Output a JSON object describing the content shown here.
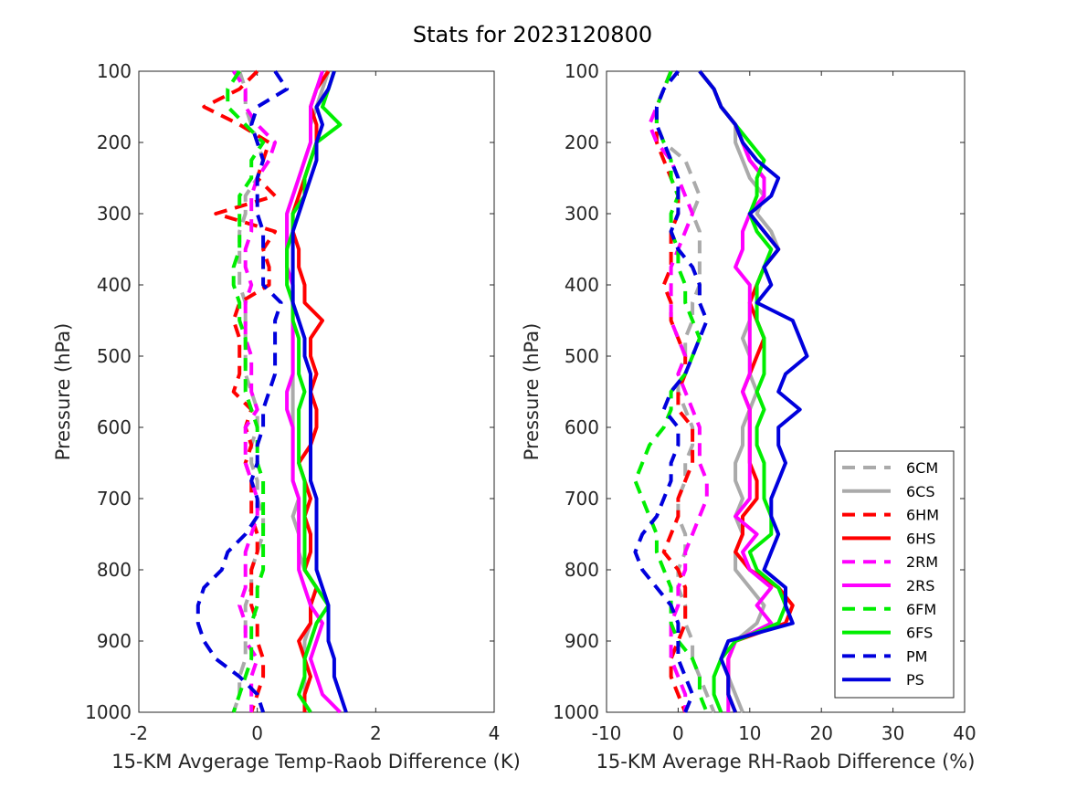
{
  "figure": {
    "title": "Stats for 2023120800"
  },
  "colors": {
    "6C": "#aaaaaa",
    "6H": "#ff0000",
    "2R": "#ff00ff",
    "6F": "#00ee00",
    "P": "#0000dd"
  },
  "chart_data": [
    {
      "type": "line",
      "xlabel": "15-KM Avgerage Temp-Raob Difference (K)",
      "ylabel": "Pressure (hPa)",
      "xlim": [
        -2,
        4
      ],
      "ylim": [
        100,
        1000
      ],
      "y_reversed": true,
      "xticks": [
        "-2",
        "0",
        "2",
        "4"
      ],
      "yticks": [
        "100",
        "200",
        "300",
        "400",
        "500",
        "600",
        "700",
        "800",
        "900",
        "1000"
      ],
      "y": [
        100,
        125,
        150,
        175,
        200,
        225,
        250,
        275,
        300,
        325,
        350,
        375,
        400,
        425,
        450,
        475,
        500,
        525,
        550,
        575,
        600,
        625,
        650,
        675,
        700,
        725,
        750,
        775,
        800,
        825,
        850,
        875,
        900,
        925,
        950,
        975,
        1000
      ],
      "series": [
        {
          "name": "6CM",
          "color_key": "6C",
          "dashed": true,
          "x": [
            -0.3,
            -0.2,
            -0.2,
            -0.1,
            0.0,
            0.1,
            0.0,
            -0.2,
            -0.2,
            -0.3,
            -0.3,
            -0.3,
            -0.3,
            -0.2,
            -0.2,
            -0.2,
            -0.2,
            -0.2,
            -0.1,
            0.0,
            0.0,
            -0.1,
            -0.1,
            0.0,
            0.0,
            0.1,
            0.1,
            0.0,
            -0.1,
            -0.1,
            -0.2,
            -0.2,
            -0.2,
            -0.2,
            -0.3,
            -0.3,
            -0.4
          ]
        },
        {
          "name": "6CS",
          "color_key": "6C",
          "dashed": false,
          "x": [
            1.2,
            1.1,
            1.0,
            0.9,
            0.9,
            0.8,
            0.7,
            0.6,
            0.5,
            0.5,
            0.5,
            0.5,
            0.6,
            0.6,
            0.6,
            0.6,
            0.6,
            0.6,
            0.6,
            0.6,
            0.6,
            0.6,
            0.6,
            0.6,
            0.7,
            0.6,
            0.7,
            0.7,
            0.8,
            1.0,
            0.9,
            0.9,
            0.8,
            0.8,
            0.8,
            0.8,
            0.8
          ]
        },
        {
          "name": "6HM",
          "color_key": "6H",
          "dashed": true,
          "x": [
            0.0,
            -0.3,
            -0.9,
            -0.3,
            0.2,
            0.1,
            0.0,
            0.3,
            -0.7,
            0.3,
            0.1,
            0.2,
            0.2,
            -0.3,
            -0.4,
            -0.3,
            -0.3,
            -0.3,
            -0.4,
            -0.1,
            -0.2,
            -0.1,
            -0.2,
            -0.1,
            -0.1,
            -0.1,
            0.0,
            0.0,
            -0.1,
            -0.1,
            -0.1,
            0.0,
            0.0,
            0.1,
            0.1,
            0.0,
            -0.1
          ]
        },
        {
          "name": "6HS",
          "color_key": "6H",
          "dashed": false,
          "x": [
            1.2,
            1.0,
            0.9,
            1.0,
            1.0,
            0.9,
            0.8,
            0.7,
            0.6,
            0.6,
            0.7,
            0.7,
            0.8,
            0.8,
            1.1,
            0.9,
            0.9,
            1.0,
            0.9,
            1.0,
            1.0,
            0.9,
            0.7,
            0.8,
            0.9,
            0.8,
            0.9,
            0.9,
            0.8,
            1.0,
            0.9,
            0.9,
            0.7,
            0.8,
            0.9,
            0.8,
            0.8
          ]
        },
        {
          "name": "2RM",
          "color_key": "2R",
          "dashed": true,
          "x": [
            -0.4,
            -0.2,
            -0.2,
            0.0,
            0.3,
            0.2,
            0.0,
            -0.1,
            -0.1,
            -0.1,
            -0.2,
            -0.2,
            -0.1,
            -0.2,
            -0.2,
            -0.2,
            -0.1,
            -0.1,
            -0.1,
            0.0,
            -0.2,
            -0.2,
            -0.2,
            -0.1,
            0.0,
            0.0,
            -0.1,
            -0.2,
            -0.2,
            -0.2,
            -0.3,
            -0.2,
            -0.2,
            0.0,
            -0.1,
            -0.1,
            -0.1
          ]
        },
        {
          "name": "2RS",
          "color_key": "2R",
          "dashed": false,
          "x": [
            1.1,
            1.0,
            0.9,
            0.9,
            0.9,
            0.8,
            0.7,
            0.6,
            0.5,
            0.5,
            0.5,
            0.5,
            0.6,
            0.6,
            0.6,
            0.6,
            0.6,
            0.6,
            0.5,
            0.5,
            0.6,
            0.6,
            0.6,
            0.6,
            0.7,
            0.7,
            0.7,
            0.7,
            0.7,
            0.8,
            0.9,
            1.1,
            1.0,
            0.9,
            1.0,
            1.1,
            1.4
          ]
        },
        {
          "name": "6FM",
          "color_key": "6F",
          "dashed": true,
          "x": [
            -0.3,
            -0.5,
            -0.5,
            -0.2,
            0.1,
            -0.1,
            -0.1,
            -0.3,
            -0.3,
            -0.3,
            -0.3,
            -0.4,
            -0.4,
            -0.3,
            -0.3,
            -0.2,
            -0.2,
            -0.2,
            -0.2,
            -0.1,
            0.0,
            0.0,
            0.0,
            0.1,
            0.1,
            0.1,
            0.1,
            0.1,
            0.1,
            0.0,
            0.0,
            -0.1,
            -0.1,
            -0.1,
            -0.2,
            -0.3,
            -0.4
          ]
        },
        {
          "name": "6FS",
          "color_key": "6F",
          "dashed": false,
          "x": [
            1.3,
            1.2,
            1.1,
            1.4,
            1.0,
            0.9,
            0.8,
            0.8,
            0.6,
            0.6,
            0.5,
            0.5,
            0.5,
            0.6,
            0.6,
            0.7,
            0.7,
            0.7,
            0.8,
            0.7,
            0.7,
            0.7,
            0.7,
            0.8,
            0.8,
            0.8,
            0.8,
            0.8,
            0.8,
            1.0,
            1.2,
            1.0,
            0.9,
            0.8,
            0.8,
            0.7,
            0.9
          ]
        },
        {
          "name": "PM",
          "color_key": "P",
          "dashed": true,
          "x": [
            0.3,
            0.5,
            0.0,
            -0.1,
            0.0,
            0.1,
            0.0,
            0.0,
            0.0,
            0.1,
            0.1,
            0.1,
            0.1,
            0.4,
            0.3,
            0.3,
            0.3,
            0.3,
            0.2,
            0.1,
            0.1,
            0.0,
            0.0,
            -0.1,
            0.0,
            0.0,
            -0.2,
            -0.5,
            -0.6,
            -0.9,
            -1.0,
            -1.0,
            -0.9,
            -0.7,
            -0.3,
            0.0,
            0.1
          ]
        },
        {
          "name": "PS",
          "color_key": "P",
          "dashed": false,
          "x": [
            1.3,
            1.2,
            1.0,
            1.1,
            1.0,
            1.0,
            0.9,
            0.8,
            0.7,
            0.6,
            0.6,
            0.6,
            0.6,
            0.6,
            0.7,
            0.8,
            0.8,
            0.9,
            0.9,
            0.9,
            0.9,
            0.9,
            0.9,
            0.9,
            1.0,
            1.0,
            1.0,
            1.0,
            1.0,
            1.1,
            1.2,
            1.2,
            1.2,
            1.3,
            1.3,
            1.4,
            1.5
          ]
        }
      ]
    },
    {
      "type": "line",
      "xlabel": "15-KM Average RH-Raob Difference (%)",
      "ylabel": "Pressure (hPa)",
      "xlim": [
        -10,
        40
      ],
      "ylim": [
        100,
        1000
      ],
      "y_reversed": true,
      "xticks": [
        "-10",
        "0",
        "10",
        "20",
        "30",
        "40"
      ],
      "yticks": [
        "100",
        "200",
        "300",
        "400",
        "500",
        "600",
        "700",
        "800",
        "900",
        "1000"
      ],
      "legend_location": "lower-right",
      "y": [
        100,
        125,
        150,
        175,
        200,
        225,
        250,
        275,
        300,
        325,
        350,
        375,
        400,
        425,
        450,
        475,
        500,
        525,
        550,
        575,
        600,
        625,
        650,
        675,
        700,
        725,
        750,
        775,
        800,
        825,
        850,
        875,
        900,
        925,
        950,
        975,
        1000
      ],
      "series": [
        {
          "name": "6CM",
          "color_key": "6C",
          "dashed": true,
          "x": [
            -1,
            -2,
            -3,
            -3,
            -2,
            1,
            2,
            3,
            2,
            3,
            3,
            3,
            3,
            2,
            2,
            1,
            1,
            0,
            0,
            1,
            2,
            2,
            1,
            1,
            0,
            0,
            1,
            1,
            0,
            0,
            1,
            1,
            2,
            2,
            3,
            4,
            5
          ]
        },
        {
          "name": "6CS",
          "color_key": "6C",
          "dashed": false,
          "x": [
            3,
            5,
            6,
            8,
            8,
            9,
            10,
            12,
            11,
            13,
            14,
            12,
            11,
            10,
            10,
            9,
            10,
            10,
            11,
            10,
            9,
            9,
            8,
            8,
            9,
            8,
            9,
            8,
            8,
            10,
            12,
            11,
            8,
            7,
            7,
            8,
            9
          ]
        },
        {
          "name": "6HM",
          "color_key": "6H",
          "dashed": true,
          "x": [
            -1,
            -2,
            -3,
            -3,
            -3,
            -2,
            -1,
            0,
            0,
            -1,
            -1,
            -1,
            -2,
            -1,
            -1,
            0,
            1,
            1,
            0,
            0,
            2,
            2,
            2,
            1,
            0,
            0,
            -1,
            -2,
            0,
            1,
            1,
            1,
            0,
            -1,
            -1,
            0,
            1
          ]
        },
        {
          "name": "6HS",
          "color_key": "6H",
          "dashed": false,
          "x": [
            3,
            5,
            6,
            8,
            9,
            10,
            12,
            12,
            10,
            12,
            14,
            12,
            11,
            10,
            11,
            12,
            11,
            10,
            9,
            10,
            10,
            10,
            10,
            11,
            11,
            9,
            9,
            8,
            10,
            14,
            16,
            15,
            8,
            7,
            7,
            7,
            8
          ]
        },
        {
          "name": "2RM",
          "color_key": "2R",
          "dashed": true,
          "x": [
            -1,
            -2,
            -3,
            -4,
            -3,
            -1,
            0,
            1,
            2,
            1,
            0,
            -1,
            -1,
            -1,
            -1,
            0,
            1,
            0,
            1,
            2,
            3,
            3,
            3,
            4,
            4,
            3,
            2,
            1,
            1,
            0,
            0,
            -1,
            -1,
            -1,
            0,
            1,
            1
          ]
        },
        {
          "name": "2RS",
          "color_key": "2R",
          "dashed": false,
          "x": [
            3,
            5,
            6,
            8,
            9,
            10,
            12,
            12,
            10,
            9,
            9,
            8,
            10,
            10,
            10,
            10,
            10,
            10,
            9,
            10,
            10,
            10,
            10,
            10,
            10,
            8,
            11,
            9,
            10,
            13,
            11,
            13,
            8,
            7,
            7,
            7,
            7
          ]
        },
        {
          "name": "6FM",
          "color_key": "6F",
          "dashed": true,
          "x": [
            -1,
            -2,
            -3,
            -3,
            -2,
            -1,
            -1,
            0,
            -1,
            -1,
            0,
            0,
            1,
            1,
            2,
            3,
            2,
            1,
            -1,
            -1,
            -2,
            -4,
            -5,
            -6,
            -5,
            -4,
            -3,
            -3,
            -2,
            -1,
            -1,
            -1,
            0,
            2,
            3,
            3,
            4
          ]
        },
        {
          "name": "6FS",
          "color_key": "6F",
          "dashed": false,
          "x": [
            3,
            5,
            6,
            8,
            10,
            12,
            11,
            11,
            10,
            11,
            13,
            12,
            11,
            11,
            11,
            12,
            12,
            12,
            11,
            12,
            11,
            11,
            12,
            12,
            12,
            13,
            13,
            10,
            11,
            14,
            15,
            14,
            8,
            6,
            5,
            5,
            6
          ]
        },
        {
          "name": "PM",
          "color_key": "P",
          "dashed": true,
          "x": [
            0,
            -2,
            -3,
            -3,
            -2,
            -1,
            0,
            0,
            0,
            -1,
            0,
            2,
            3,
            3,
            4,
            3,
            2,
            1,
            -1,
            -2,
            0,
            0,
            -1,
            -1,
            -2,
            -3,
            -5,
            -6,
            -5,
            -3,
            -1,
            0,
            0,
            0,
            1,
            2,
            1
          ]
        },
        {
          "name": "PS",
          "color_key": "P",
          "dashed": false,
          "x": [
            3,
            5,
            6,
            8,
            9,
            11,
            14,
            13,
            10,
            12,
            14,
            12,
            13,
            11,
            16,
            17,
            18,
            15,
            14,
            17,
            14,
            14,
            15,
            14,
            13,
            13,
            14,
            13,
            12,
            15,
            15,
            16,
            7,
            6,
            7,
            7,
            8
          ]
        }
      ]
    }
  ]
}
